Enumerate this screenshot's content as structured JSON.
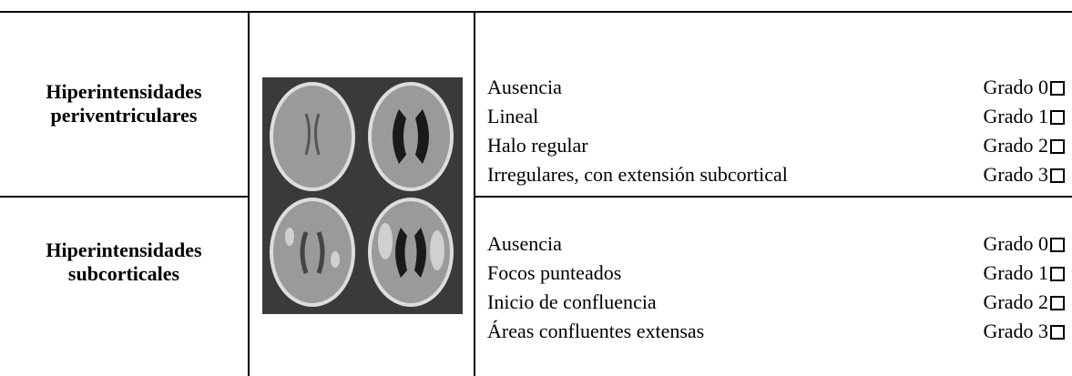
{
  "table": {
    "rows": [
      {
        "label": [
          "Hiperintensidades",
          "periventriculares"
        ],
        "items": [
          {
            "text": "Ausencia",
            "grade": "Grado 0"
          },
          {
            "text": "Lineal",
            "grade": "Grado 1"
          },
          {
            "text": "Halo regular",
            "grade": "Grado 2"
          },
          {
            "text": "Irregulares, con extensión subcortical",
            "grade": "Grado 3"
          }
        ]
      },
      {
        "label": [
          "Hiperintensidades",
          "subcorticales"
        ],
        "items": [
          {
            "text": "Ausencia",
            "grade": "Grado 0"
          },
          {
            "text": "Focos punteados",
            "grade": "Grado 1"
          },
          {
            "text": "Inicio de confluencia",
            "grade": "Grado 2"
          },
          {
            "text": "Áreas confluentes extensas",
            "grade": "Grado 3"
          }
        ]
      }
    ]
  }
}
